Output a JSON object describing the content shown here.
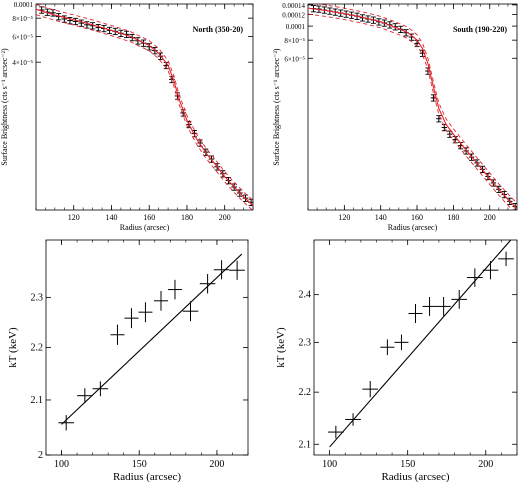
{
  "colors": {
    "model": "#e8202a",
    "data": "#000000",
    "axes": "#000000"
  },
  "chart_data": [
    {
      "type": "scatter",
      "panel": "top-left",
      "annotation": "North (350-20)",
      "xlabel": "Radius (arcsec)",
      "ylabel": "Surface Brightness (cts s⁻¹ arcsec⁻²)",
      "log_y": true,
      "xlim": [
        100,
        215
      ],
      "ylim": [
        3.9e-06,
        0.0001
      ],
      "x_ticks": [
        {
          "value": 120,
          "label": "120"
        },
        {
          "value": 140,
          "label": "140"
        },
        {
          "value": 160,
          "label": "160"
        },
        {
          "value": 180,
          "label": "180"
        },
        {
          "value": 200,
          "label": "200"
        }
      ],
      "y_ticks": [
        {
          "value": 0.0001,
          "label": "0.0001"
        },
        {
          "value": 8e-05,
          "label": "8×10⁻⁵"
        },
        {
          "value": 6e-05,
          "label": "6×10⁻⁵"
        },
        {
          "value": 4e-05,
          "label": "4×10⁻⁵"
        }
      ],
      "series": [
        {
          "role": "data",
          "x": [
            103,
            106,
            109,
            112,
            115,
            118,
            121,
            124,
            127,
            130,
            133,
            136,
            139,
            142,
            145,
            148,
            151,
            154,
            157,
            160,
            163,
            166,
            169,
            172,
            175,
            178,
            181,
            184,
            187,
            190,
            193,
            196,
            199,
            202,
            205,
            208,
            211,
            214
          ],
          "y": [
            9.1e-05,
            8.8e-05,
            8.7e-05,
            8.2e-05,
            7.9e-05,
            7.7e-05,
            7.6e-05,
            7.4e-05,
            7.2e-05,
            7.1e-05,
            6.9e-05,
            6.8e-05,
            6.6e-05,
            6.5e-05,
            6.3e-05,
            6.2e-05,
            5.9e-05,
            5.6e-05,
            5.4e-05,
            5.1e-05,
            4.8e-05,
            4.4e-05,
            3.8e-05,
            3.05e-05,
            2.35e-05,
            1.8e-05,
            1.5e-05,
            1.3e-05,
            1.12e-05,
            9.7e-06,
            8.7e-06,
            7.7e-06,
            6.9e-06,
            6.2e-06,
            5.6e-06,
            5.1e-06,
            4.7e-06,
            4.4e-06
          ],
          "yerr_frac": 0.05,
          "xerr": 1.5
        },
        {
          "role": "model",
          "x": [
            100,
            110,
            120,
            130,
            140,
            150,
            160,
            165,
            170,
            173,
            176,
            180,
            185,
            190,
            195,
            200,
            205,
            210,
            215
          ],
          "y": [
            9.2e-05,
            8.4e-05,
            7.8e-05,
            7.2e-05,
            6.6e-05,
            6e-05,
            5.2e-05,
            4.6e-05,
            3.8e-05,
            3e-05,
            2.2e-05,
            1.6e-05,
            1.2e-05,
            9.6e-06,
            8e-06,
            6.6e-06,
            5.6e-06,
            4.8e-06,
            4.2e-06
          ],
          "band_frac": 0.08
        }
      ]
    },
    {
      "type": "scatter",
      "panel": "top-right",
      "annotation": "South (190-220)",
      "xlabel": "Radius (arcsec)",
      "ylabel": "Surface Brightness (cts s⁻¹ arcsec⁻²)",
      "log_y": true,
      "xlim": [
        100,
        215
      ],
      "ylim": [
        5.4e-06,
        0.000142
      ],
      "x_ticks": [
        {
          "value": 120,
          "label": "120"
        },
        {
          "value": 140,
          "label": "140"
        },
        {
          "value": 160,
          "label": "160"
        },
        {
          "value": 180,
          "label": "180"
        },
        {
          "value": 200,
          "label": "200"
        }
      ],
      "y_ticks": [
        {
          "value": 0.00014,
          "label": "0.00014"
        },
        {
          "value": 0.00012,
          "label": "0.00012"
        },
        {
          "value": 0.0001,
          "label": "0.0001"
        },
        {
          "value": 8e-05,
          "label": "8×10⁻⁵"
        },
        {
          "value": 6e-05,
          "label": "6×10⁻⁵"
        }
      ],
      "series": [
        {
          "role": "data",
          "x": [
            103,
            106,
            109,
            112,
            115,
            118,
            121,
            124,
            127,
            130,
            133,
            136,
            139,
            142,
            145,
            148,
            151,
            154,
            157,
            160,
            163,
            166,
            169,
            172,
            175,
            178,
            181,
            184,
            187,
            190,
            193,
            196,
            199,
            202,
            205,
            208,
            211,
            214
          ],
          "y": [
            0.000132,
            0.000131,
            0.000129,
            0.000127,
            0.000125,
            0.000123,
            0.000121,
            0.000119,
            0.000117,
            0.000114,
            0.000112,
            0.00011,
            0.000107,
            0.000105,
            0.000102,
            9.9e-05,
            9.5e-05,
            9e-05,
            8.4e-05,
            7.6e-05,
            6.5e-05,
            4.9e-05,
            3.2e-05,
            2.3e-05,
            2e-05,
            1.8e-05,
            1.65e-05,
            1.5e-05,
            1.38e-05,
            1.25e-05,
            1.14e-05,
            1.03e-05,
            9.2e-06,
            8.3e-06,
            7.5e-06,
            6.9e-06,
            6.2e-06,
            5.7e-06
          ],
          "yerr_frac": 0.05,
          "xerr": 1.5
        },
        {
          "role": "model",
          "x": [
            100,
            110,
            120,
            130,
            140,
            150,
            155,
            160,
            163,
            166,
            169,
            172,
            176,
            180,
            185,
            190,
            195,
            200,
            205,
            210,
            215
          ],
          "y": [
            0.000133,
            0.000128,
            0.000122,
            0.000115,
            0.000107,
            9.6e-05,
            9e-05,
            8e-05,
            7e-05,
            5.5e-05,
            3.8e-05,
            2.7e-05,
            2.1e-05,
            1.8e-05,
            1.5e-05,
            1.26e-05,
            1.06e-05,
            8.9e-06,
            7.5e-06,
            6.4e-06,
            5.5e-06
          ],
          "band_frac": 0.09
        }
      ]
    },
    {
      "type": "scatter",
      "panel": "bottom-left",
      "xlabel": "Radius (arcsec)",
      "ylabel": "kT (keV)",
      "log_y": true,
      "xlim": [
        90,
        220
      ],
      "ylim": [
        2.0,
        2.42
      ],
      "x_ticks": [
        {
          "value": 100,
          "label": "100"
        },
        {
          "value": 150,
          "label": "150"
        },
        {
          "value": 200,
          "label": "200"
        }
      ],
      "y_ticks": [
        {
          "value": 2.0,
          "label": "2"
        },
        {
          "value": 2.1,
          "label": "2.1"
        },
        {
          "value": 2.2,
          "label": "2.2"
        },
        {
          "value": 2.3,
          "label": "2.3"
        }
      ],
      "series": [
        {
          "role": "data",
          "x": [
            103,
            115,
            125,
            136,
            145,
            154,
            164,
            173,
            183,
            194,
            203,
            213
          ],
          "xerr": [
            5,
            5,
            5,
            4.5,
            4.5,
            4.5,
            4.5,
            4.5,
            5,
            5,
            5,
            5
          ],
          "y": [
            2.058,
            2.108,
            2.121,
            2.225,
            2.258,
            2.27,
            2.293,
            2.316,
            2.272,
            2.328,
            2.357,
            2.356
          ],
          "yerr": [
            0.014,
            0.014,
            0.014,
            0.02,
            0.02,
            0.02,
            0.02,
            0.02,
            0.02,
            0.02,
            0.02,
            0.02
          ]
        },
        {
          "role": "model",
          "x": [
            100,
            216
          ],
          "y": [
            2.055,
            2.39
          ]
        }
      ]
    },
    {
      "type": "scatter",
      "panel": "bottom-right",
      "xlabel": "Radius (arcsec)",
      "ylabel": "kT (keV)",
      "log_y": true,
      "xlim": [
        90,
        220
      ],
      "ylim": [
        2.08,
        2.52
      ],
      "x_ticks": [
        {
          "value": 100,
          "label": "100"
        },
        {
          "value": 150,
          "label": "150"
        },
        {
          "value": 200,
          "label": "200"
        }
      ],
      "y_ticks": [
        {
          "value": 2.1,
          "label": "2.1"
        },
        {
          "value": 2.2,
          "label": "2.2"
        },
        {
          "value": 2.3,
          "label": "2.3"
        },
        {
          "value": 2.4,
          "label": "2.4"
        }
      ],
      "series": [
        {
          "role": "data",
          "x": [
            104,
            115,
            126,
            137,
            146,
            155,
            164,
            173,
            183,
            193,
            203,
            213
          ],
          "xerr": [
            5,
            5,
            5,
            4.5,
            4.5,
            4.5,
            4.5,
            4.5,
            5,
            5,
            5,
            5
          ],
          "y": [
            2.123,
            2.147,
            2.206,
            2.29,
            2.3,
            2.36,
            2.375,
            2.375,
            2.39,
            2.437,
            2.453,
            2.478
          ],
          "yerr": [
            0.012,
            0.012,
            0.016,
            0.016,
            0.016,
            0.02,
            0.02,
            0.02,
            0.02,
            0.02,
            0.02,
            0.016
          ]
        },
        {
          "role": "model",
          "x": [
            100,
            216
          ],
          "y": [
            2.095,
            2.52
          ]
        }
      ]
    }
  ]
}
